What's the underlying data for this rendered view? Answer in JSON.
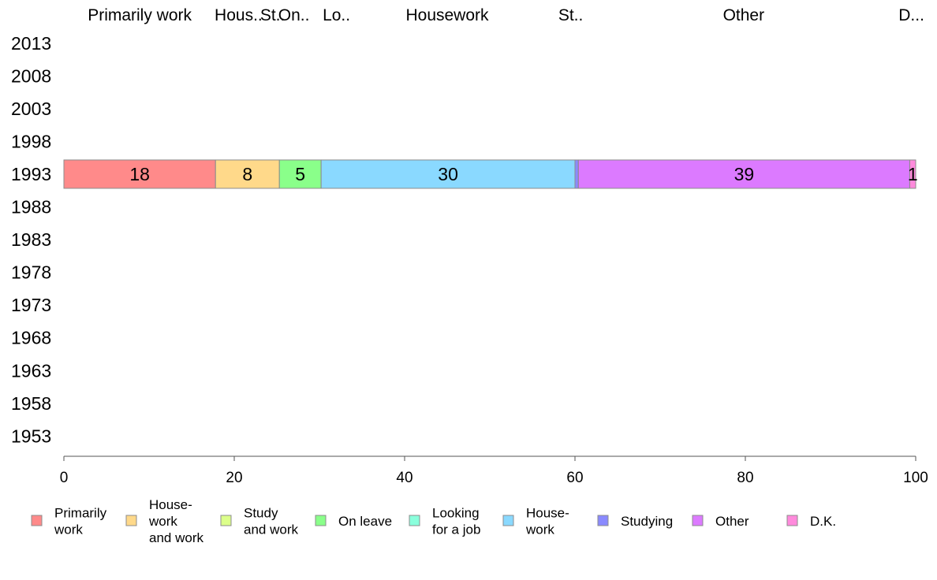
{
  "chart_data": {
    "type": "bar",
    "orientation": "horizontal",
    "stacked": true,
    "title": "",
    "xlabel": "",
    "ylabel": "",
    "xlim": [
      0,
      100
    ],
    "x_ticks": [
      "0",
      "20",
      "40",
      "60",
      "80",
      "100"
    ],
    "years": [
      "2013",
      "2008",
      "2003",
      "1998",
      "1993",
      "1988",
      "1983",
      "1978",
      "1973",
      "1968",
      "1963",
      "1958",
      "1953"
    ],
    "category_header_labels": [
      "Primarily work",
      "Hous..",
      "St..",
      "On..",
      "Lo..",
      "Housework",
      "St..",
      "Other",
      "D..."
    ],
    "series": [
      {
        "key": "primarily_work",
        "color": "#ff8a8a",
        "values": {
          "1993": 17.8
        },
        "label": "18"
      },
      {
        "key": "housework_and_work",
        "color": "#ffd98a",
        "values": {
          "1993": 7.5
        },
        "label": "8"
      },
      {
        "key": "study_and_work",
        "color": "#dcff8a",
        "values": {
          "1993": 0
        },
        "label": ""
      },
      {
        "key": "on_leave",
        "color": "#8aff8a",
        "values": {
          "1993": 4.9
        },
        "label": "5"
      },
      {
        "key": "looking_for_job",
        "color": "#8affdc",
        "values": {
          "1993": 0
        },
        "label": ""
      },
      {
        "key": "housework",
        "color": "#8ad9ff",
        "values": {
          "1993": 29.8
        },
        "label": "30"
      },
      {
        "key": "studying",
        "color": "#8a8aff",
        "values": {
          "1993": 0.4
        },
        "label": ""
      },
      {
        "key": "other",
        "color": "#dc7aff",
        "values": {
          "1993": 38.9
        },
        "label": "39"
      },
      {
        "key": "dk",
        "color": "#ff8adc",
        "values": {
          "1993": 0.7
        },
        "label": "1"
      }
    ],
    "legend": [
      {
        "lines": [
          "Primarily",
          "work"
        ],
        "color": "#ff8a8a"
      },
      {
        "lines": [
          "House-",
          "work",
          "and work"
        ],
        "color": "#ffd98a"
      },
      {
        "lines": [
          "Study",
          "and work"
        ],
        "color": "#dcff8a"
      },
      {
        "lines": [
          "On leave"
        ],
        "color": "#8aff8a"
      },
      {
        "lines": [
          "Looking",
          "for a job"
        ],
        "color": "#8affdc"
      },
      {
        "lines": [
          "House-",
          "work"
        ],
        "color": "#8ad9ff"
      },
      {
        "lines": [
          "Studying"
        ],
        "color": "#8a8aff"
      },
      {
        "lines": [
          "Other"
        ],
        "color": "#dc7aff"
      },
      {
        "lines": [
          "D.K."
        ],
        "color": "#ff8adc"
      }
    ],
    "legend_position": "bottom",
    "grid": false
  }
}
